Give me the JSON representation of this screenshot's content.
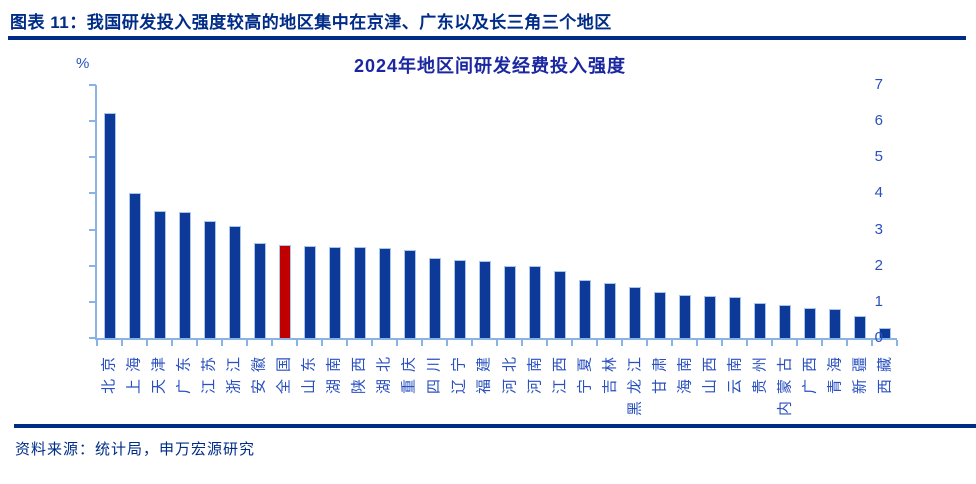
{
  "header": {
    "title": "图表 11：我国研发投入强度较高的地区集中在京津、广东以及长三角三个地区"
  },
  "chart_data": {
    "type": "bar",
    "title": "2024年地区间研发经费投入强度",
    "y_unit": "%",
    "xlabel": "",
    "ylabel": "",
    "ylim": [
      0,
      7
    ],
    "yticks": [
      0,
      1,
      2,
      3,
      4,
      5,
      6,
      7
    ],
    "grid": false,
    "legend": null,
    "categories": [
      "北京",
      "上海",
      "天津",
      "广东",
      "江苏",
      "浙江",
      "安徽",
      "全国",
      "山东",
      "湖南",
      "陕西",
      "湖北",
      "重庆",
      "四川",
      "辽宁",
      "福建",
      "河北",
      "河南",
      "江西",
      "宁夏",
      "吉林",
      "黑龙江",
      "甘肃",
      "海南",
      "山西",
      "云南",
      "贵州",
      "内蒙古",
      "广西",
      "青海",
      "新疆",
      "西藏"
    ],
    "values": [
      6.22,
      4.01,
      3.51,
      3.5,
      3.25,
      3.11,
      2.64,
      2.58,
      2.54,
      2.53,
      2.51,
      2.48,
      2.43,
      2.22,
      2.16,
      2.13,
      2.0,
      1.98,
      1.85,
      1.61,
      1.52,
      1.4,
      1.27,
      1.19,
      1.15,
      1.13,
      0.98,
      0.92,
      0.83,
      0.8,
      0.6,
      0.29
    ],
    "highlight_index": 7,
    "highlight_category": "全国",
    "colors": {
      "bar": "#0d3a99",
      "highlight": "#c00000",
      "axis": "#88b3e2",
      "tick_label": "#2a50c0",
      "title": "#1a27a0",
      "header_text": "#002c87"
    }
  },
  "footer": {
    "source": "资料来源：统计局，申万宏源研究"
  }
}
